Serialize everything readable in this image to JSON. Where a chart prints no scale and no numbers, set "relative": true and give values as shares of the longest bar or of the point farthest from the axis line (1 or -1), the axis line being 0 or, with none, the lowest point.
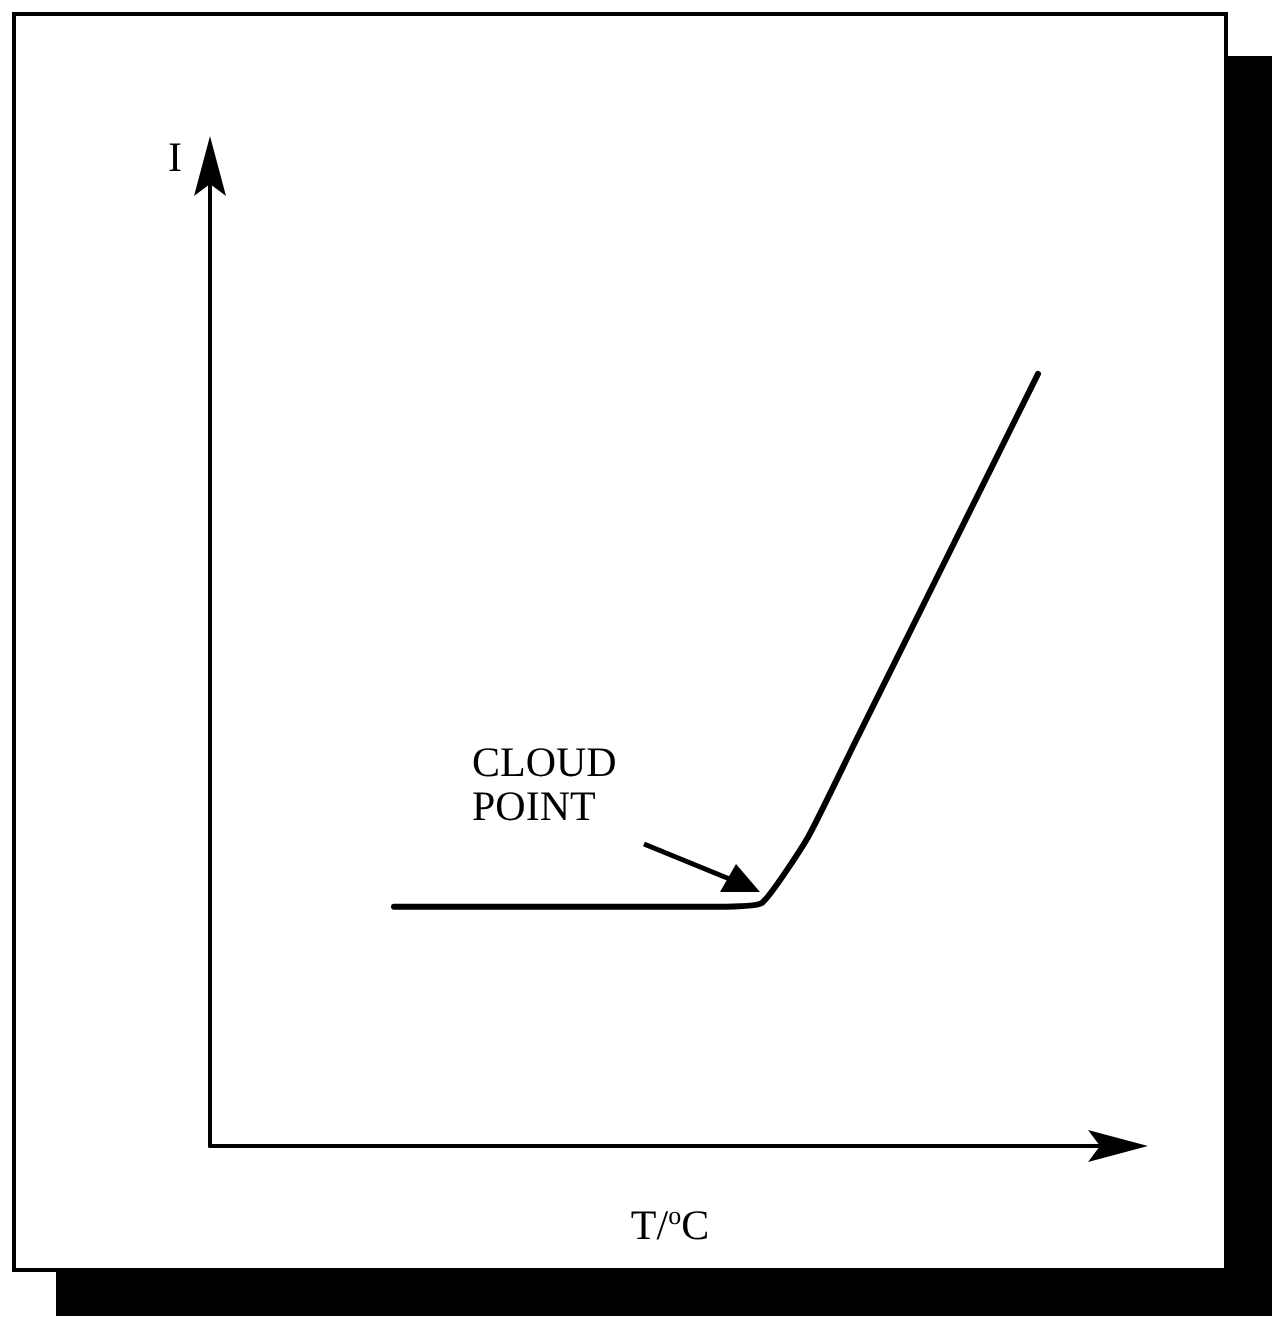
{
  "chart_data": {
    "type": "line",
    "relative": true,
    "xlabel": "T/$^{o}$C",
    "ylabel": "I",
    "categories": [
      null,
      null,
      null,
      null,
      null,
      null,
      null,
      null,
      null,
      null,
      null,
      null,
      null,
      null,
      null,
      null,
      null,
      null,
      null,
      null,
      null
    ],
    "series": [
      {
        "color": "#000000",
        "values": [
          null,
          null,
          null,
          null,
          0.31,
          0.31,
          0.31,
          0.31,
          0.31,
          0.31,
          0.31,
          0.31,
          0.315,
          0.4,
          0.52,
          0.64,
          0.76,
          0.88,
          1.0,
          null,
          null
        ]
      }
    ],
    "annotations": [
      "CLOUD POINT"
    ],
    "grid": false,
    "marker": "none",
    "line_style": "solid"
  }
}
